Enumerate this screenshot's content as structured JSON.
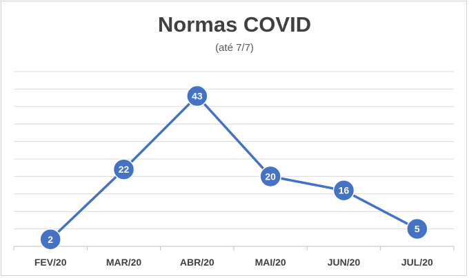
{
  "chart_data": {
    "type": "line",
    "title": "Normas COVID",
    "subtitle": "(até 7/7)",
    "categories": [
      "FEV/20",
      "MAR/20",
      "ABR/20",
      "MAI/20",
      "JUN/20",
      "JUL/20"
    ],
    "series": [
      {
        "values": [
          2,
          22,
          43,
          20,
          16,
          5
        ]
      }
    ],
    "ylim": [
      0,
      50
    ],
    "grid": true,
    "line_color": "#4472c4",
    "grid_color": "#d9d9d9"
  }
}
